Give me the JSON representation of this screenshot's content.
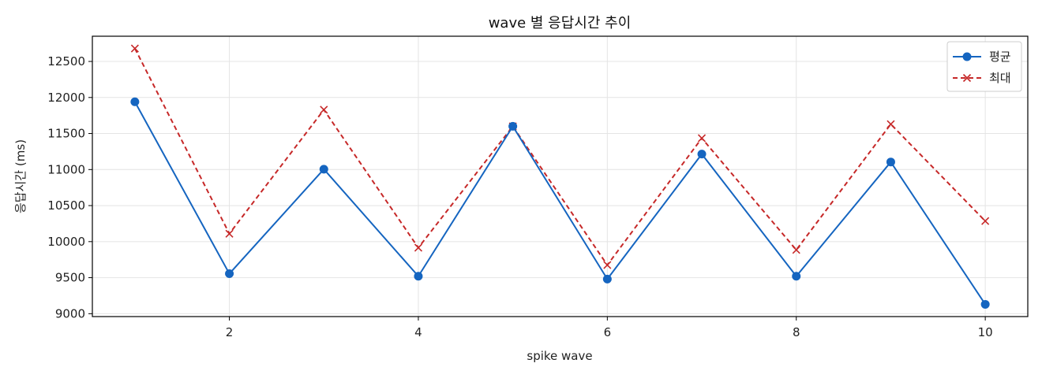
{
  "chart_data": {
    "type": "line",
    "title": "wave 별 응답시간 추이",
    "xlabel": "spike wave",
    "ylabel": "응답시간 (ms)",
    "x": [
      1,
      2,
      3,
      4,
      5,
      6,
      7,
      8,
      9,
      10
    ],
    "xlim": [
      0.55,
      10.45
    ],
    "ylim": [
      8960,
      12850
    ],
    "xticks": [
      2,
      4,
      6,
      8,
      10
    ],
    "yticks": [
      9000,
      9500,
      10000,
      10500,
      11000,
      11500,
      12000,
      12500
    ],
    "grid": true,
    "legend_position": "top-right",
    "series": [
      {
        "name": "평균",
        "values": [
          11940,
          9555,
          11005,
          9520,
          11600,
          9480,
          11215,
          9520,
          11105,
          9130
        ],
        "color": "#1565c0",
        "line_style": "solid",
        "marker": "circle"
      },
      {
        "name": "최대",
        "values": [
          12680,
          10110,
          11830,
          9915,
          11600,
          9675,
          11435,
          9885,
          11630,
          10285
        ],
        "color": "#c62828",
        "line_style": "dashed",
        "marker": "x"
      }
    ]
  }
}
